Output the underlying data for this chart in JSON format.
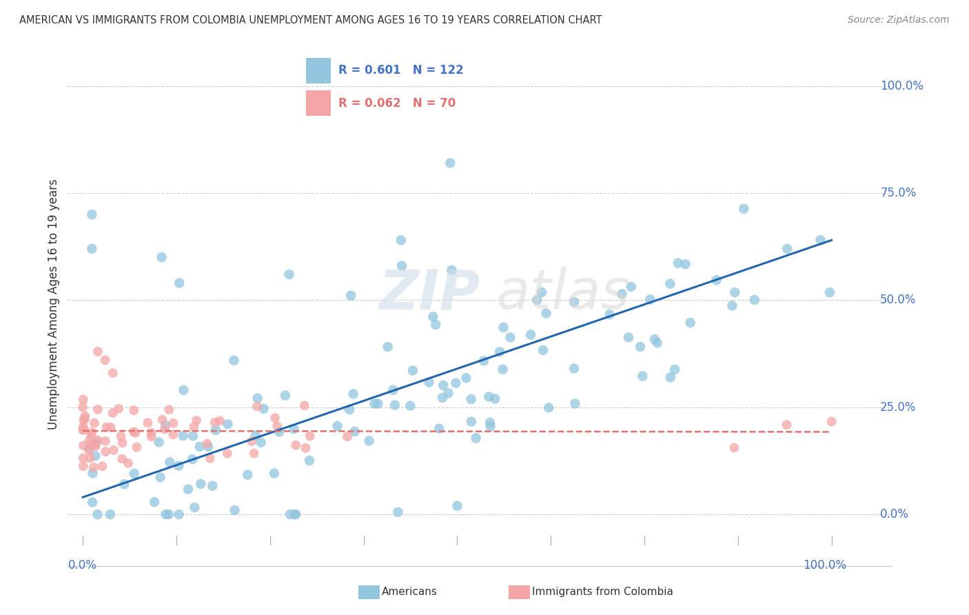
{
  "title": "AMERICAN VS IMMIGRANTS FROM COLOMBIA UNEMPLOYMENT AMONG AGES 16 TO 19 YEARS CORRELATION CHART",
  "source": "Source: ZipAtlas.com",
  "ylabel": "Unemployment Among Ages 16 to 19 years",
  "ytick_vals": [
    0.0,
    0.25,
    0.5,
    0.75,
    1.0
  ],
  "ytick_labels": [
    "0.0%",
    "25.0%",
    "50.0%",
    "75.0%",
    "100.0%"
  ],
  "legend_blue_r": "0.601",
  "legend_blue_n": "122",
  "legend_pink_r": "0.062",
  "legend_pink_n": "70",
  "blue_color": "#92c5de",
  "pink_color": "#f4a6a6",
  "line_blue_color": "#2166ac",
  "line_pink_color": "#e07070",
  "americans_label": "Americans",
  "colombia_label": "Immigrants from Colombia",
  "axis_color": "#4472c4",
  "grid_color": "#cccccc"
}
